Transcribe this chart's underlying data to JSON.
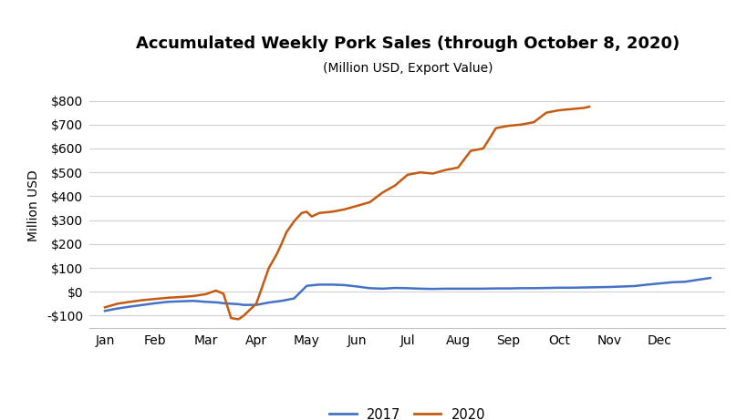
{
  "title": "Accumulated Weekly Pork Sales (through October 8, 2020)",
  "subtitle": "(Million USD, Export Value)",
  "ylabel": "Million USD",
  "title_fontsize": 13,
  "subtitle_fontsize": 10,
  "ylabel_fontsize": 10,
  "tick_fontsize": 10,
  "background_color": "#ffffff",
  "xlim": [
    -0.3,
    12.3
  ],
  "ylim": [
    -150,
    870
  ],
  "yticks": [
    -100,
    0,
    100,
    200,
    300,
    400,
    500,
    600,
    700,
    800
  ],
  "month_labels": [
    "Jan",
    "Feb",
    "Mar",
    "Apr",
    "May",
    "Jun",
    "Jul",
    "Aug",
    "Sep",
    "Oct",
    "Nov",
    "Dec"
  ],
  "month_positions": [
    0,
    1,
    2,
    3,
    4,
    5,
    6,
    7,
    8,
    9,
    10,
    11
  ],
  "series_2017": {
    "label": "2017",
    "color": "#4472C4",
    "x": [
      0.0,
      0.25,
      0.5,
      0.75,
      1.0,
      1.25,
      1.5,
      1.75,
      2.0,
      2.25,
      2.35,
      2.5,
      2.65,
      2.75,
      3.0,
      3.25,
      3.5,
      3.75,
      4.0,
      4.25,
      4.5,
      4.75,
      5.0,
      5.25,
      5.5,
      5.75,
      6.0,
      6.25,
      6.5,
      6.75,
      7.0,
      7.25,
      7.5,
      7.75,
      8.0,
      8.25,
      8.5,
      8.75,
      9.0,
      9.25,
      9.5,
      9.75,
      10.0,
      10.25,
      10.5,
      10.75,
      11.0,
      11.25,
      11.5,
      11.75,
      12.0
    ],
    "y": [
      -80,
      -70,
      -62,
      -55,
      -48,
      -42,
      -40,
      -38,
      -42,
      -45,
      -48,
      -50,
      -52,
      -55,
      -55,
      -45,
      -38,
      -28,
      25,
      30,
      30,
      28,
      22,
      15,
      13,
      16,
      15,
      13,
      12,
      13,
      13,
      13,
      13,
      14,
      14,
      15,
      15,
      16,
      17,
      17,
      18,
      19,
      20,
      22,
      24,
      30,
      35,
      40,
      42,
      50,
      58
    ]
  },
  "series_2020": {
    "label": "2020",
    "color": "#C55A11",
    "x": [
      0.0,
      0.25,
      0.5,
      0.75,
      1.0,
      1.25,
      1.5,
      1.75,
      2.0,
      2.2,
      2.35,
      2.5,
      2.65,
      2.75,
      3.0,
      3.1,
      3.25,
      3.4,
      3.5,
      3.6,
      3.75,
      3.9,
      4.0,
      4.1,
      4.25,
      4.5,
      4.75,
      5.0,
      5.25,
      5.5,
      5.75,
      6.0,
      6.25,
      6.5,
      6.75,
      7.0,
      7.25,
      7.5,
      7.75,
      8.0,
      8.25,
      8.5,
      8.75,
      9.0,
      9.25,
      9.5,
      9.6
    ],
    "y": [
      -65,
      -50,
      -42,
      -35,
      -30,
      -25,
      -22,
      -18,
      -10,
      5,
      -8,
      -110,
      -115,
      -100,
      -50,
      10,
      100,
      155,
      200,
      250,
      295,
      330,
      335,
      315,
      330,
      335,
      345,
      360,
      375,
      415,
      445,
      490,
      500,
      495,
      510,
      520,
      590,
      600,
      685,
      695,
      700,
      710,
      750,
      760,
      765,
      770,
      775
    ]
  },
  "legend_color_2017": "#4472C4",
  "legend_color_2020": "#C55A11",
  "grid_color": "#d0d0d0",
  "bottom_border_color": "#c0c0c0"
}
